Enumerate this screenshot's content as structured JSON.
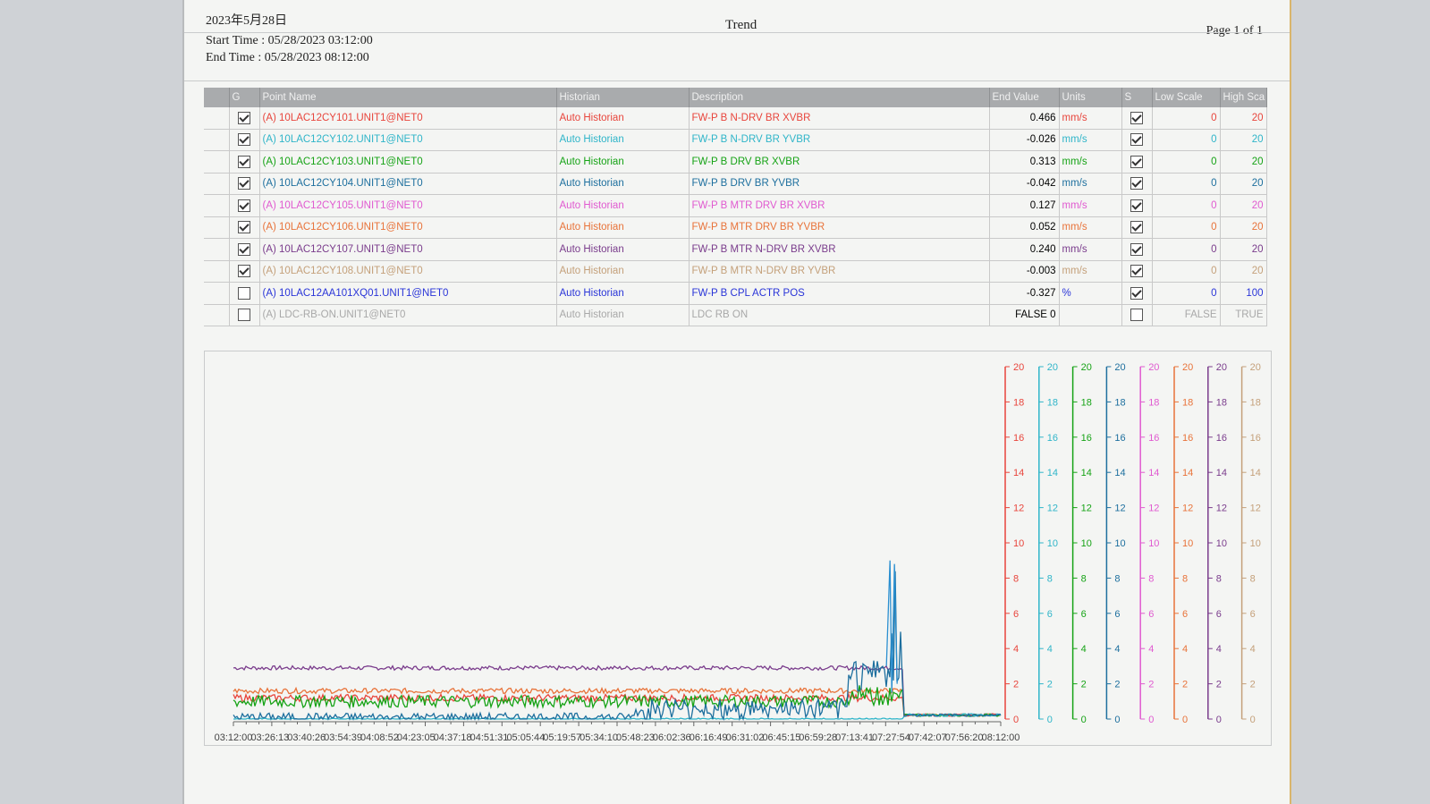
{
  "header": {
    "date": "2023年5月28日",
    "title": "Trend",
    "page": "Page 1 of 1",
    "start": "Start Time : 05/28/2023 03:12:00",
    "end": "End Time : 05/28/2023 08:12:00"
  },
  "table": {
    "columns": [
      "G",
      "Point Name",
      "Historian",
      "Description",
      "End Value",
      "Units",
      "S",
      "Low Scale",
      "High Sca"
    ],
    "rows": [
      {
        "checked": true,
        "name": "(A) 10LAC12CY101.UNIT1@NET0",
        "historian": "Auto Historian",
        "description": "FW-P B N-DRV BR XVBR",
        "end_value": "0.466",
        "units": "mm/s",
        "s": true,
        "low": "0",
        "high": "20",
        "color": "#e8453c"
      },
      {
        "checked": true,
        "name": "(A) 10LAC12CY102.UNIT1@NET0",
        "historian": "Auto Historian",
        "description": "FW-P B N-DRV BR YVBR",
        "end_value": "-0.026",
        "units": "mm/s",
        "s": true,
        "low": "0",
        "high": "20",
        "color": "#2fb5c9"
      },
      {
        "checked": true,
        "name": "(A) 10LAC12CY103.UNIT1@NET0",
        "historian": "Auto Historian",
        "description": "FW-P B DRV BR XVBR",
        "end_value": "0.313",
        "units": "mm/s",
        "s": true,
        "low": "0",
        "high": "20",
        "color": "#16a316"
      },
      {
        "checked": true,
        "name": "(A) 10LAC12CY104.UNIT1@NET0",
        "historian": "Auto Historian",
        "description": "FW-P B DRV BR YVBR",
        "end_value": "-0.042",
        "units": "mm/s",
        "s": true,
        "low": "0",
        "high": "20",
        "color": "#1d6f9e"
      },
      {
        "checked": true,
        "name": "(A) 10LAC12CY105.UNIT1@NET0",
        "historian": "Auto Historian",
        "description": "FW-P B MTR DRV BR XVBR",
        "end_value": "0.127",
        "units": "mm/s",
        "s": true,
        "low": "0",
        "high": "20",
        "color": "#e05ad0"
      },
      {
        "checked": true,
        "name": "(A) 10LAC12CY106.UNIT1@NET0",
        "historian": "Auto Historian",
        "description": "FW-P B MTR DRV BR YVBR",
        "end_value": "0.052",
        "units": "mm/s",
        "s": true,
        "low": "0",
        "high": "20",
        "color": "#e8733a"
      },
      {
        "checked": true,
        "name": "(A) 10LAC12CY107.UNIT1@NET0",
        "historian": "Auto Historian",
        "description": "FW-P B MTR N-DRV BR XVBR",
        "end_value": "0.240",
        "units": "mm/s",
        "s": true,
        "low": "0",
        "high": "20",
        "color": "#7a3c8c"
      },
      {
        "checked": true,
        "name": "(A) 10LAC12CY108.UNIT1@NET0",
        "historian": "Auto Historian",
        "description": "FW-P B MTR N-DRV BR YVBR",
        "end_value": "-0.003",
        "units": "mm/s",
        "s": true,
        "low": "0",
        "high": "20",
        "color": "#c4a07a"
      },
      {
        "checked": false,
        "name": "(A) 10LAC12AA101XQ01.UNIT1@NET0",
        "historian": "Auto Historian",
        "description": "FW-P B CPL ACTR POS",
        "end_value": "-0.327",
        "units": "%",
        "s": true,
        "low": "0",
        "high": "100",
        "color": "#2a35d8"
      },
      {
        "checked": false,
        "name": "(A) LDC-RB-ON.UNIT1@NET0",
        "historian": "Auto Historian",
        "description": "LDC RB ON",
        "end_value": "FALSE 0",
        "units": "",
        "s": false,
        "low": "FALSE",
        "high": "TRUE",
        "color": "#a8a8a8"
      }
    ]
  },
  "chart_data": {
    "type": "line",
    "x_labels": [
      "03:12:00",
      "03:26:13",
      "03:40:26",
      "03:54:39",
      "04:08:52",
      "04:23:05",
      "04:37:18",
      "04:51:31",
      "05:05:44",
      "05:19:57",
      "05:34:10",
      "05:48:23",
      "06:02:36",
      "06:16:49",
      "06:31:02",
      "06:45:15",
      "06:59:28",
      "07:13:41",
      "07:27:54",
      "07:42:07",
      "07:56:20",
      "08:12:00"
    ],
    "axes": [
      {
        "color": "#e8453c",
        "ticks": [
          "20",
          "18",
          "16",
          "14",
          "12",
          "10",
          "8",
          "6",
          "4",
          "2",
          "0"
        ]
      },
      {
        "color": "#2fb5c9",
        "ticks": [
          "20",
          "18",
          "16",
          "14",
          "12",
          "10",
          "8",
          "6",
          "4",
          "2",
          "0"
        ]
      },
      {
        "color": "#16a316",
        "ticks": [
          "20",
          "18",
          "16",
          "14",
          "12",
          "10",
          "8",
          "6",
          "4",
          "2",
          "0"
        ]
      },
      {
        "color": "#1d6f9e",
        "ticks": [
          "20",
          "18",
          "16",
          "14",
          "12",
          "10",
          "8",
          "6",
          "4",
          "2",
          "0"
        ]
      },
      {
        "color": "#e05ad0",
        "ticks": [
          "20",
          "18",
          "16",
          "14",
          "12",
          "10",
          "8",
          "6",
          "4",
          "2",
          "0"
        ]
      },
      {
        "color": "#e8733a",
        "ticks": [
          "20",
          "18",
          "16",
          "14",
          "12",
          "10",
          "8",
          "6",
          "4",
          "2",
          "0"
        ]
      },
      {
        "color": "#7a3c8c",
        "ticks": [
          "20",
          "18",
          "16",
          "14",
          "12",
          "10",
          "8",
          "6",
          "4",
          "2",
          "0"
        ]
      },
      {
        "color": "#c4a07a",
        "ticks": [
          "20",
          "18",
          "16",
          "14",
          "12",
          "10",
          "8",
          "6",
          "4",
          "2",
          "0"
        ]
      }
    ],
    "ylim": [
      0,
      20
    ],
    "series": [
      {
        "color": "#7a3c8c",
        "level": 2.9,
        "noise": 0.12
      },
      {
        "color": "#e8733a",
        "level": 1.6,
        "noise": 0.15
      },
      {
        "color": "#e8453c",
        "level": 1.2,
        "noise": 0.2
      },
      {
        "color": "#16a316",
        "level": 1.0,
        "noise": 0.35
      },
      {
        "color": "#2fb5c9",
        "level": 0.0,
        "noise": 0.05
      },
      {
        "color": "#1d6f9e",
        "level": 0.1,
        "noise": 0.25
      }
    ]
  }
}
